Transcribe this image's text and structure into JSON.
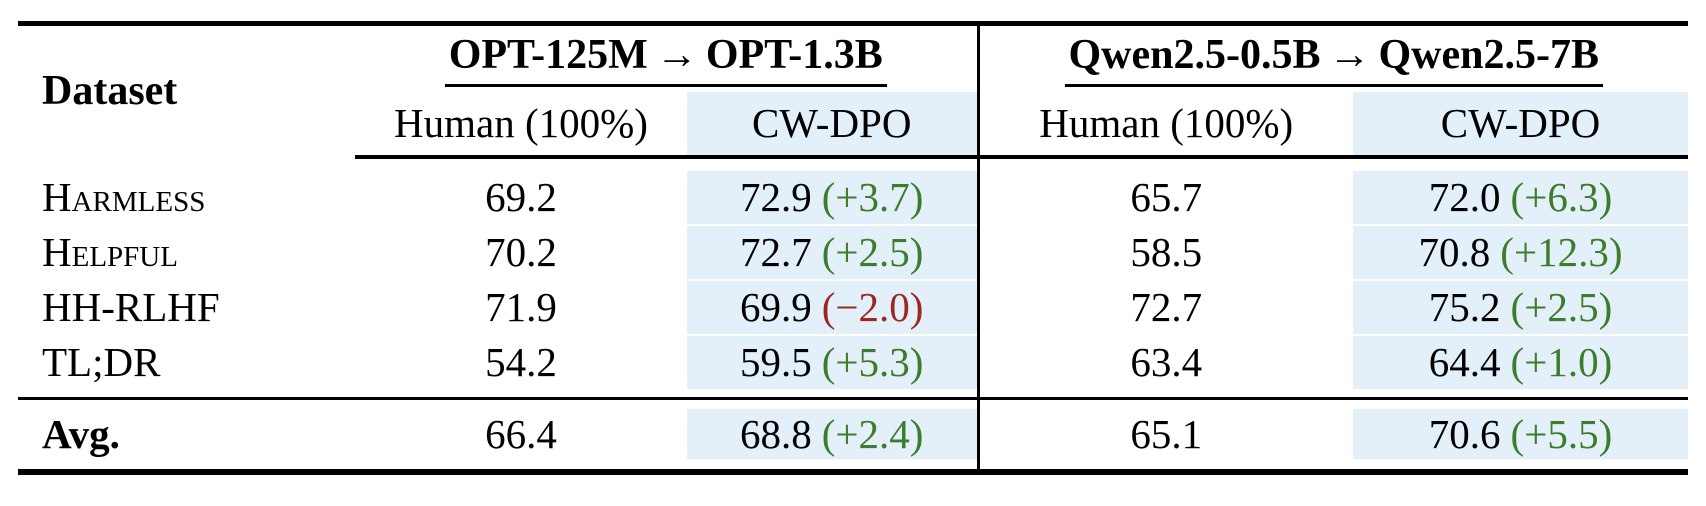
{
  "table": {
    "header": {
      "dataset_label": "Dataset",
      "groups": [
        {
          "from": "OPT-125M",
          "arrow": "→",
          "to": "OPT-1.3B"
        },
        {
          "from": "Qwen2.5-0.5B",
          "arrow": "→",
          "to": "Qwen2.5-7B"
        }
      ],
      "sub": {
        "human": "Human (100%)",
        "cwdpo": "CW-DPO"
      }
    },
    "rows": [
      {
        "dataset": "Harmless",
        "opt_human": "69.2",
        "opt_cwdpo": {
          "value": "72.9",
          "delta": "(+3.7)",
          "delta_class": "delta pos"
        },
        "qwen_human": "65.7",
        "qwen_cwdpo": {
          "value": "72.0",
          "delta": "(+6.3)",
          "delta_class": "delta pos"
        }
      },
      {
        "dataset": "Helpful",
        "opt_human": "70.2",
        "opt_cwdpo": {
          "value": "72.7",
          "delta": "(+2.5)",
          "delta_class": "delta pos"
        },
        "qwen_human": "58.5",
        "qwen_cwdpo": {
          "value": "70.8",
          "delta": "(+12.3)",
          "delta_class": "delta pos"
        }
      },
      {
        "dataset": "HH-RLHF",
        "opt_human": "71.9",
        "opt_cwdpo": {
          "value": "69.9",
          "delta": "(−2.0)",
          "delta_class": "delta neg"
        },
        "qwen_human": "72.7",
        "qwen_cwdpo": {
          "value": "75.2",
          "delta": "(+2.5)",
          "delta_class": "delta pos"
        }
      },
      {
        "dataset": "TL;DR",
        "opt_human": "54.2",
        "opt_cwdpo": {
          "value": "59.5",
          "delta": "(+5.3)",
          "delta_class": "delta pos"
        },
        "qwen_human": "63.4",
        "qwen_cwdpo": {
          "value": "64.4",
          "delta": "(+1.0)",
          "delta_class": "delta pos"
        }
      }
    ],
    "avg": {
      "dataset": "Avg.",
      "opt_human": "66.4",
      "opt_cwdpo": {
        "value": "68.8",
        "delta": "(+2.4)",
        "delta_class": "delta pos"
      },
      "qwen_human": "65.1",
      "qwen_cwdpo": {
        "value": "70.6",
        "delta": "(+5.5)",
        "delta_class": "delta pos"
      }
    },
    "colors": {
      "highlight": "#e3eff9",
      "positive": "#3b7d2a",
      "negative": "#9a2821"
    }
  }
}
